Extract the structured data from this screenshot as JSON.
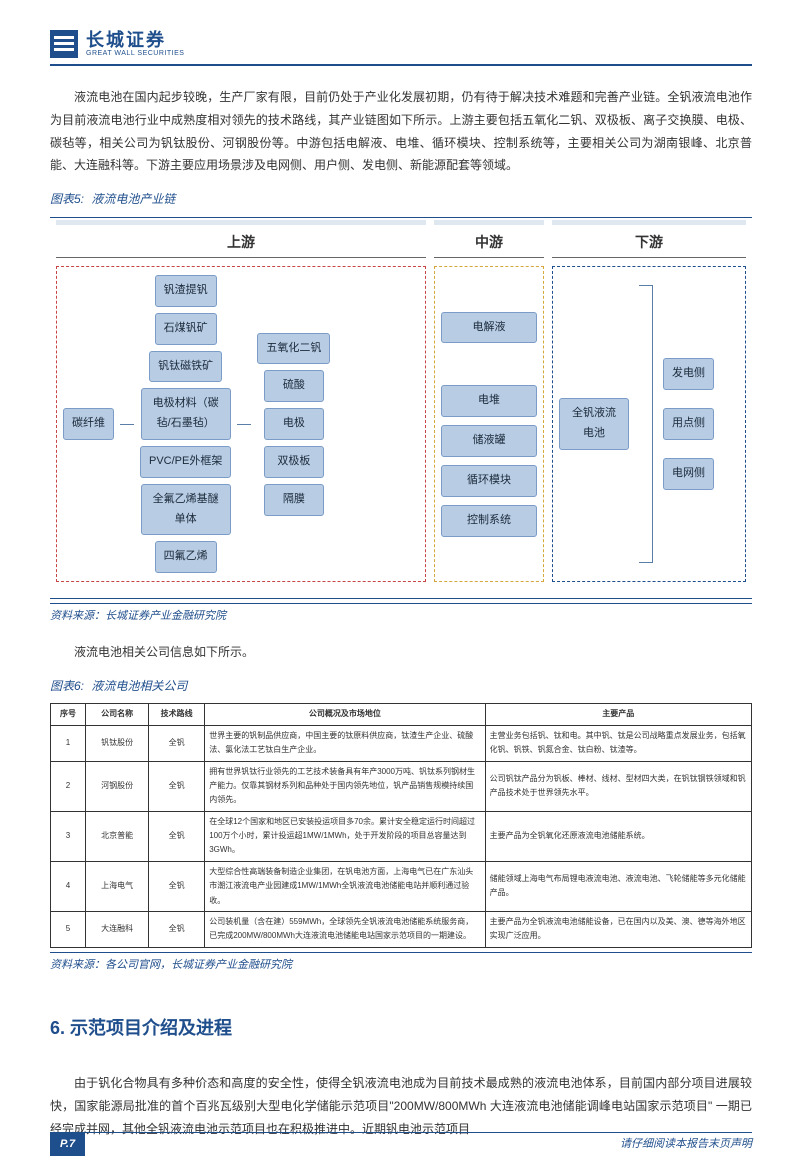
{
  "header": {
    "logo_cn": "长城证券",
    "logo_en": "GREAT WALL SECURITIES"
  },
  "para1": "液流电池在国内起步较晚，生产厂家有限，目前仍处于产业化发展初期，仍有待于解决技术难题和完善产业链。全钒液流电池作为目前液流电池行业中成熟度相对领先的技术路线，其产业链图如下所示。上游主要包括五氧化二钒、双极板、离子交换膜、电极、碳毡等，相关公司为钒钛股份、河钢股份等。中游包括电解液、电堆、循环模块、控制系统等，主要相关公司为湖南银峰、北京普能、大连融科等。下游主要应用场景涉及电网侧、用户侧、发电侧、新能源配套等领域。",
  "fig5": {
    "label_prefix": "图表5:",
    "title": "液流电池产业链",
    "headers": {
      "upstream": "上游",
      "midstream": "中游",
      "downstream": "下游"
    },
    "zone_border_colors": {
      "upstream": "#c84545",
      "midstream": "#d4a83a",
      "downstream": "#1f4e8c"
    },
    "node_style": {
      "bg": "#b8cce4",
      "border": "#7a9cc6",
      "radius": 3,
      "fontsize": 11,
      "text_color": "#1a2a3a"
    },
    "upstream": {
      "col1": [
        "碳纤维"
      ],
      "col2": [
        "钒渣提钒",
        "石煤钒矿",
        "钒钛磁铁矿",
        "电极材料（碳毡/石墨毡）",
        "PVC/PE外框架",
        "全氟乙烯基醚单体",
        "四氟乙烯"
      ],
      "col3": [
        "五氧化二钒",
        "硫酸",
        "电极",
        "双极板",
        "隔膜"
      ]
    },
    "midstream": [
      "电解液",
      "电堆",
      "储液罐",
      "循环模块",
      "控制系统"
    ],
    "downstream": {
      "hub": "全钒液流电池",
      "outputs": [
        "发电侧",
        "用点侧",
        "电网侧"
      ]
    },
    "source": "资料来源：长城证券产业金融研究院"
  },
  "para2": "液流电池相关公司信息如下所示。",
  "fig6": {
    "label_prefix": "图表6:",
    "title": "液流电池相关公司",
    "columns": [
      "序号",
      "公司名称",
      "技术路线",
      "公司概况及市场地位",
      "主要产品"
    ],
    "col_widths": [
      "5%",
      "9%",
      "8%",
      "40%",
      "38%"
    ],
    "rows": [
      [
        "1",
        "钒钛股份",
        "全钒",
        "世界主要的钒制品供应商，中国主要的钛原料供应商，钛渣生产企业、硫酸法、氯化法工艺钛白生产企业。",
        "主营业务包括钒、钛和电。其中钒、钛是公司战略重点发展业务，包括氧化钒、钒铁、钒氮合金、钛白粉、钛渣等。"
      ],
      [
        "2",
        "河钢股份",
        "全钒",
        "拥有世界钒钛行业领先的工艺技术装备具有年产3000万吨、钒钛系列钢材生产能力。仅靠其钢材系列和品种处于国内领先地位，钒产品销售规模持续国内领先。",
        "公司钒钛产品分为钒板、棒材、线材、型材四大类，在钒钛钢铁领域和钒产品技术处于世界领先水平。"
      ],
      [
        "3",
        "北京普能",
        "全钒",
        "在全球12个国家和地区已安装投运项目多70余。累计安全稳定运行时间超过100万个小时，累计投运超1MW/1MWh，处于开发阶段的项目总容量达到3GWh。",
        "主要产品为全钒氧化还原液流电池储能系统。"
      ],
      [
        "4",
        "上海电气",
        "全钒",
        "大型综合性高端装备制造企业集团，在钒电池方面，上海电气已在广东汕头市潮江液流电产业园建成1MW/1MWh全钒液流电池储能电站并顺利通过验收。",
        "储能领域上海电气布局锂电液流电池、液流电池、飞轮储能等多元化储能产品。"
      ],
      [
        "5",
        "大连融科",
        "全钒",
        "公司装机量（含在建）559MWh，全球领先全钒液流电池储能系统服务商，已完成200MW/800MWh大连液流电池储能电站国家示范项目的一期建设。",
        "主要产品为全钒液流电池储能设备，已在国内以及美、澳、德等海外地区实现广泛应用。"
      ]
    ],
    "source": "资料来源：各公司官网，长城证券产业金融研究院"
  },
  "section6": {
    "heading": "6. 示范项目介绍及进程"
  },
  "para3": "由于钒化合物具有多种价态和高度的安全性，使得全钒液流电池成为目前技术最成熟的液流电池体系，目前国内部分项目进展较快，国家能源局批准的首个百兆瓦级别大型电化学储能示范项目\"200MW/800MWh 大连液流电池储能调峰电站国家示范项目\" 一期已经完成并网，其他全钒液流电池示范项目也在积极推进中。近期钒电池示范项目",
  "footer": {
    "page": "P.7",
    "note": "请仔细阅读本报告末页声明"
  }
}
